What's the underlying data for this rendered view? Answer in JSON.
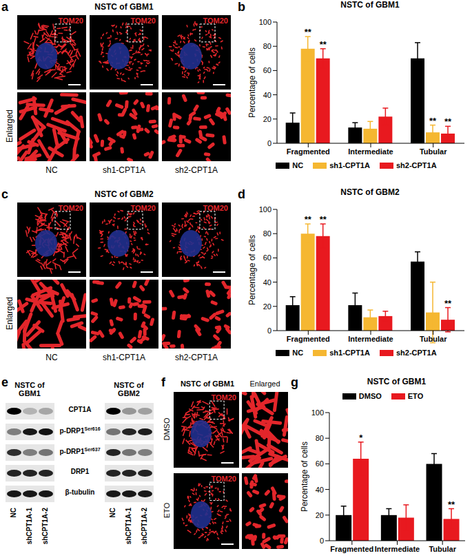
{
  "figure_panels": {
    "a": {
      "panel": "a",
      "title": "NSTC of GBM1",
      "stain": "TOM20",
      "row_label": "Enlarged",
      "columns": [
        "NC",
        "sh1-CPT1A",
        "sh2-CPT1A"
      ]
    },
    "c": {
      "panel": "c",
      "title": "NSTC of GBM2",
      "stain": "TOM20",
      "row_label": "Enlarged",
      "columns": [
        "NC",
        "sh1-CPT1A",
        "sh2-CPT1A"
      ]
    },
    "e": {
      "panel": "e",
      "groups": [
        "NSTC of GBM1",
        "NSTC of GBM2"
      ],
      "rows": [
        {
          "label": "CPT1A"
        },
        {
          "label": "p-DRP1",
          "sup": "Ser616"
        },
        {
          "label": "p-DRP1",
          "sup": "Ser637"
        },
        {
          "label": "DRP1"
        },
        {
          "label": "β-tubulin"
        }
      ],
      "lanes": [
        "NC",
        "shCPT1A-1",
        "shCPT1A-2"
      ]
    },
    "f": {
      "panel": "f",
      "title": "NSTC of GBM1",
      "stain": "TOM20",
      "column_label": "Enlarged",
      "rows": [
        "DMSO",
        "ETO"
      ]
    }
  },
  "chart_data": [
    {
      "panel": "b",
      "type": "bar",
      "title": "NSTC of GBM1",
      "y_label": "Percentage of cells",
      "categories": [
        "Fragmented",
        "Intermediate",
        "Tubular"
      ],
      "ylim": [
        0,
        100
      ],
      "yticks": [
        0,
        20,
        40,
        60,
        80,
        100
      ],
      "grid": false,
      "legend": "bottom",
      "series": [
        {
          "name": "NC",
          "color": "#000000",
          "values": [
            17,
            13,
            70
          ],
          "errors": [
            8,
            4,
            13
          ],
          "significance": [
            null,
            null,
            null
          ]
        },
        {
          "name": "sh1-CPT1A",
          "color": "#f5b731",
          "values": [
            78,
            12,
            9
          ],
          "errors": [
            10,
            6,
            6
          ],
          "significance": [
            "**",
            null,
            "**"
          ]
        },
        {
          "name": "sh2-CPT1A",
          "color": "#e8191f",
          "values": [
            70,
            22,
            8
          ],
          "errors": [
            8,
            7,
            6
          ],
          "significance": [
            "**",
            null,
            "**"
          ]
        }
      ]
    },
    {
      "panel": "d",
      "type": "bar",
      "title": "NSTC of GBM2",
      "y_label": "Percentage of cells",
      "categories": [
        "Fragmented",
        "Intermediate",
        "Tubular"
      ],
      "ylim": [
        0,
        100
      ],
      "yticks": [
        0,
        20,
        40,
        60,
        80,
        100
      ],
      "grid": false,
      "legend": "bottom",
      "series": [
        {
          "name": "NC",
          "color": "#000000",
          "values": [
            21,
            21,
            57
          ],
          "errors": [
            7,
            10,
            8
          ],
          "significance": [
            null,
            null,
            null
          ]
        },
        {
          "name": "sh1-CPT1A",
          "color": "#f5b731",
          "values": [
            80,
            11,
            15
          ],
          "errors": [
            8,
            6,
            25
          ],
          "significance": [
            "**",
            null,
            null
          ]
        },
        {
          "name": "sh2-CPT1A",
          "color": "#e8191f",
          "values": [
            78,
            12,
            9
          ],
          "errors": [
            10,
            4,
            10
          ],
          "significance": [
            "**",
            null,
            "**"
          ]
        }
      ]
    },
    {
      "panel": "g",
      "type": "bar",
      "title": "NSTC of GBM1",
      "y_label": "Percentage of cells",
      "categories": [
        "Fragmented",
        "Intermediate",
        "Tubular"
      ],
      "ylim": [
        0,
        100
      ],
      "yticks": [
        0,
        20,
        40,
        60,
        80,
        100
      ],
      "grid": false,
      "legend": "top",
      "series": [
        {
          "name": "DMSO",
          "color": "#000000",
          "values": [
            20,
            20,
            60
          ],
          "errors": [
            7,
            5,
            8
          ],
          "significance": [
            null,
            null,
            null
          ]
        },
        {
          "name": "ETO",
          "color": "#e8191f",
          "values": [
            64,
            18,
            17
          ],
          "errors": [
            13,
            10,
            8
          ],
          "significance": [
            "*",
            null,
            "**"
          ]
        }
      ]
    }
  ]
}
